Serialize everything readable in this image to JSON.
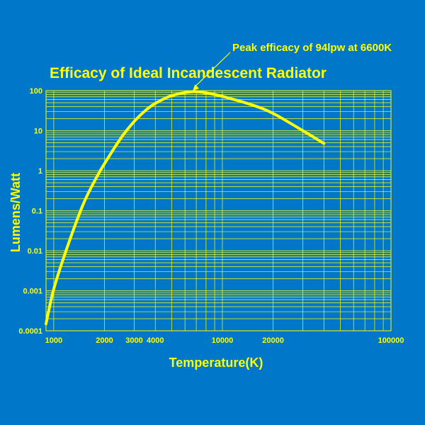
{
  "colors": {
    "background": "#0077c8",
    "foreground": "#ffff00"
  },
  "chart_data": {
    "type": "line",
    "title": "Efficacy of Ideal Incandescent Radiator",
    "xlabel": "Temperature(K)",
    "ylabel": "Lumens/Watt",
    "x_scale": "log",
    "y_scale": "log",
    "xlim": [
      900,
      100000
    ],
    "ylim": [
      0.0001,
      100
    ],
    "x_ticks": [
      {
        "value": 1000,
        "label": "1000"
      },
      {
        "value": 2000,
        "label": "2000"
      },
      {
        "value": 3000,
        "label": "3000"
      },
      {
        "value": 4000,
        "label": "4000"
      },
      {
        "value": 10000,
        "label": "10000"
      },
      {
        "value": 20000,
        "label": "20000"
      },
      {
        "value": 100000,
        "label": "100000"
      }
    ],
    "y_ticks": [
      {
        "value": 0.0001,
        "label": "0.0001"
      },
      {
        "value": 0.001,
        "label": "0.001"
      },
      {
        "value": 0.01,
        "label": "0.01"
      },
      {
        "value": 0.1,
        "label": "0.1"
      },
      {
        "value": 1,
        "label": "1"
      },
      {
        "value": 10,
        "label": "10"
      },
      {
        "value": 100,
        "label": "100"
      }
    ],
    "grid": true,
    "series": [
      {
        "x": [
          900,
          1000,
          1200,
          1500,
          1800,
          2000,
          2500,
          3000,
          3500,
          4000,
          5000,
          6600,
          8000,
          10000,
          15000,
          20000,
          30000,
          40000
        ],
        "y": [
          0.00015,
          0.0011,
          0.012,
          0.15,
          0.7,
          1.5,
          6.5,
          17,
          32,
          48,
          75,
          94,
          88,
          72,
          44,
          27,
          10,
          4.8
        ]
      }
    ],
    "annotations": [
      {
        "text": "Peak efficacy of 94lpw at 6600K",
        "x": 6600,
        "y": 94
      }
    ]
  }
}
